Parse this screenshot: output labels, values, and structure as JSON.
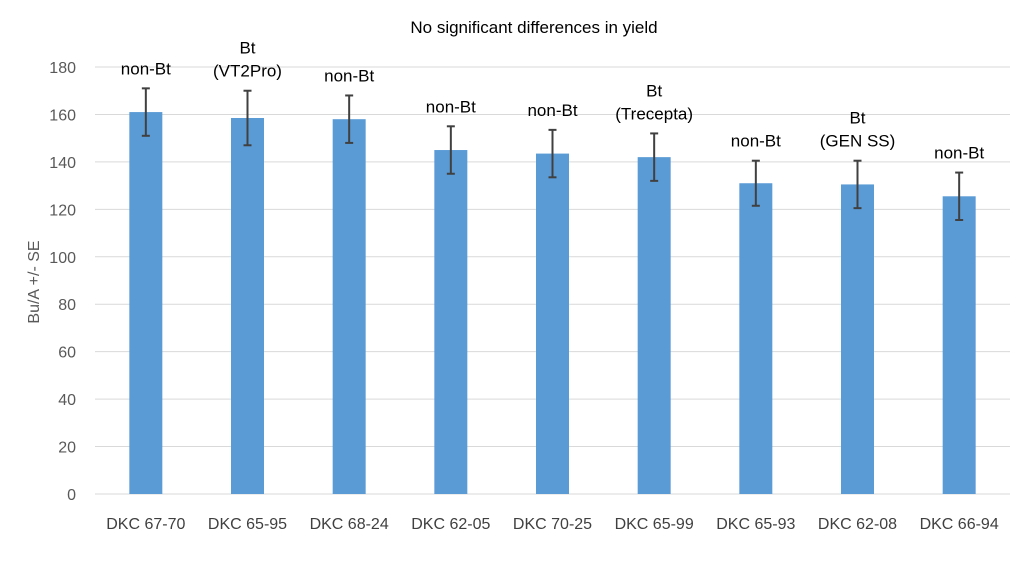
{
  "chart_data": {
    "type": "bar",
    "title": "No significant differences in yield",
    "xlabel": "",
    "ylabel": "Bu/A +/- SE",
    "ylim": [
      0,
      180
    ],
    "yticks": [
      0,
      20,
      40,
      60,
      80,
      100,
      120,
      140,
      160,
      180
    ],
    "grid": true,
    "bar_color": "#5b9bd5",
    "categories": [
      "DKC 67-70",
      "DKC 65-95",
      "DKC 68-24",
      "DKC 62-05",
      "DKC 70-25",
      "DKC 65-99",
      "DKC 65-93",
      "DKC 62-08",
      "DKC 66-94"
    ],
    "values": [
      161,
      158.5,
      158,
      145,
      143.5,
      142,
      131,
      130.5,
      125.5
    ],
    "error": [
      10,
      11.5,
      10,
      10,
      10,
      10,
      9.5,
      10,
      10
    ],
    "annotations": [
      [
        "non-Bt"
      ],
      [
        "Bt",
        "(VT2Pro)"
      ],
      [
        "non-Bt"
      ],
      [
        "non-Bt"
      ],
      [
        "non-Bt"
      ],
      [
        "Bt",
        "(Trecepta)"
      ],
      [
        "non-Bt"
      ],
      [
        "Bt",
        "(GEN SS)"
      ],
      [
        "non-Bt"
      ]
    ]
  }
}
